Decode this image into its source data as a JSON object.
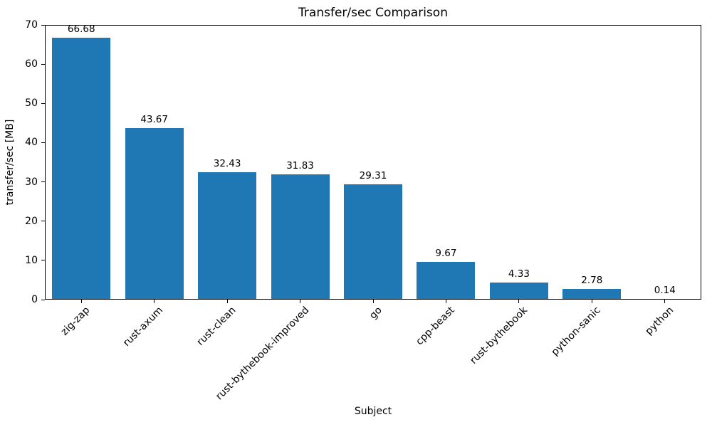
{
  "chart_data": {
    "type": "bar",
    "title": "Transfer/sec Comparison",
    "xlabel": "Subject",
    "ylabel": "transfer/sec [MB]",
    "categories": [
      "zig-zap",
      "rust-axum",
      "rust-clean",
      "rust-bythebook-improved",
      "go",
      "cpp-beast",
      "rust-bythebook",
      "python-sanic",
      "python"
    ],
    "values": [
      66.68,
      43.67,
      32.43,
      31.83,
      29.31,
      9.67,
      4.33,
      2.78,
      0.14
    ],
    "value_labels": [
      "66.68",
      "43.67",
      "32.43",
      "31.83",
      "29.31",
      "9.67",
      "4.33",
      "2.78",
      "0.14"
    ],
    "ylim": [
      0,
      70
    ],
    "yticks": [
      0,
      10,
      20,
      30,
      40,
      50,
      60,
      70
    ],
    "bar_color": "#1f77b4",
    "text_color": "#000000",
    "grid": false,
    "legend": null,
    "xtick_rotation_deg": 45
  }
}
